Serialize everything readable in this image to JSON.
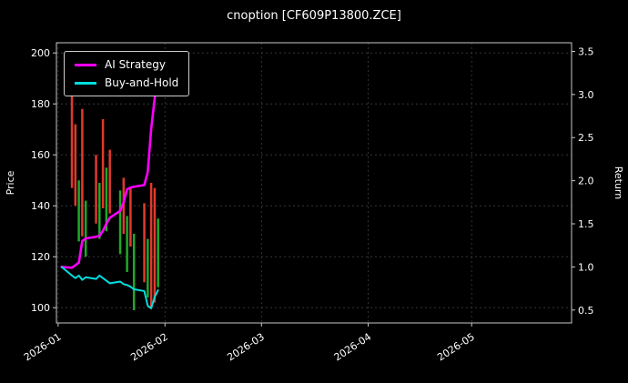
{
  "chart_data": {
    "type": "mixed-candlestick-line",
    "title": "cnoption [CF609P13800.ZCE]",
    "x_axis": {
      "tick_labels": [
        "2026-01",
        "2026-02",
        "2026-03",
        "2026-04",
        "2026-05"
      ],
      "tick_days": [
        0,
        31,
        59,
        90,
        120
      ],
      "range_days": [
        -0.5,
        149
      ],
      "day_unit": "days since 2026-01-01",
      "label_rotation_deg": 33
    },
    "left_axis": {
      "label": "Price",
      "ticks": [
        100,
        120,
        140,
        160,
        180,
        200
      ],
      "range": [
        94,
        204
      ]
    },
    "right_axis": {
      "label": "Return",
      "ticks": [
        0.5,
        1.0,
        1.5,
        2.0,
        2.5,
        3.0,
        3.5
      ],
      "range": [
        0.35,
        3.6
      ]
    },
    "grid": true,
    "legend_position": "upper-left",
    "colors": {
      "background": "#000000",
      "text": "#ffffff",
      "axis": "#c8c8c8",
      "grid": "#3f3f3f",
      "up_candle": "#e03a2e",
      "down_candle": "#1fa82a",
      "ai": "#ff00ff",
      "bh": "#00dede"
    },
    "candles": [
      {
        "day": 4,
        "low": 147,
        "high": 184,
        "dir": "up"
      },
      {
        "day": 5,
        "low": 140,
        "high": 172,
        "dir": "up"
      },
      {
        "day": 6,
        "low": 126,
        "high": 150,
        "dir": "down"
      },
      {
        "day": 7,
        "low": 128,
        "high": 178,
        "dir": "up"
      },
      {
        "day": 8,
        "low": 120,
        "high": 142,
        "dir": "down"
      },
      {
        "day": 11,
        "low": 133,
        "high": 160,
        "dir": "up"
      },
      {
        "day": 12,
        "low": 127,
        "high": 149,
        "dir": "down"
      },
      {
        "day": 13,
        "low": 139,
        "high": 174,
        "dir": "up"
      },
      {
        "day": 14,
        "low": 130,
        "high": 155,
        "dir": "down"
      },
      {
        "day": 15,
        "low": 137,
        "high": 162,
        "dir": "up"
      },
      {
        "day": 18,
        "low": 121,
        "high": 146,
        "dir": "down"
      },
      {
        "day": 19,
        "low": 129,
        "high": 151,
        "dir": "up"
      },
      {
        "day": 20,
        "low": 114,
        "high": 136,
        "dir": "down"
      },
      {
        "day": 21,
        "low": 124,
        "high": 147,
        "dir": "up"
      },
      {
        "day": 22,
        "low": 99,
        "high": 129,
        "dir": "down"
      },
      {
        "day": 25,
        "low": 110,
        "high": 141,
        "dir": "up"
      },
      {
        "day": 26,
        "low": 104,
        "high": 127,
        "dir": "down"
      },
      {
        "day": 27,
        "low": 100,
        "high": 149,
        "dir": "up"
      },
      {
        "day": 28,
        "low": 102,
        "high": 147,
        "dir": "up"
      },
      {
        "day": 29,
        "low": 108,
        "high": 135,
        "dir": "down"
      }
    ],
    "series": [
      {
        "name": "AI Strategy",
        "axis": "right",
        "color_key": "ai",
        "days": [
          1,
          4,
          5,
          6,
          7,
          8,
          11,
          12,
          13,
          14,
          15,
          18,
          19,
          20,
          21,
          22,
          25,
          26,
          27,
          28,
          29
        ],
        "values": [
          1.0,
          0.99,
          1.02,
          1.05,
          1.3,
          1.33,
          1.35,
          1.36,
          1.42,
          1.5,
          1.57,
          1.65,
          1.75,
          1.9,
          1.92,
          1.93,
          1.95,
          2.1,
          2.6,
          2.95,
          3.33
        ]
      },
      {
        "name": "Buy-and-Hold",
        "axis": "right",
        "color_key": "bh",
        "days": [
          1,
          4,
          5,
          6,
          7,
          8,
          11,
          12,
          13,
          14,
          15,
          18,
          19,
          20,
          21,
          22,
          25,
          26,
          27,
          28,
          29
        ],
        "values": [
          1.0,
          0.9,
          0.87,
          0.9,
          0.85,
          0.88,
          0.86,
          0.9,
          0.87,
          0.84,
          0.81,
          0.83,
          0.8,
          0.79,
          0.77,
          0.74,
          0.72,
          0.55,
          0.52,
          0.65,
          0.73
        ]
      }
    ]
  }
}
